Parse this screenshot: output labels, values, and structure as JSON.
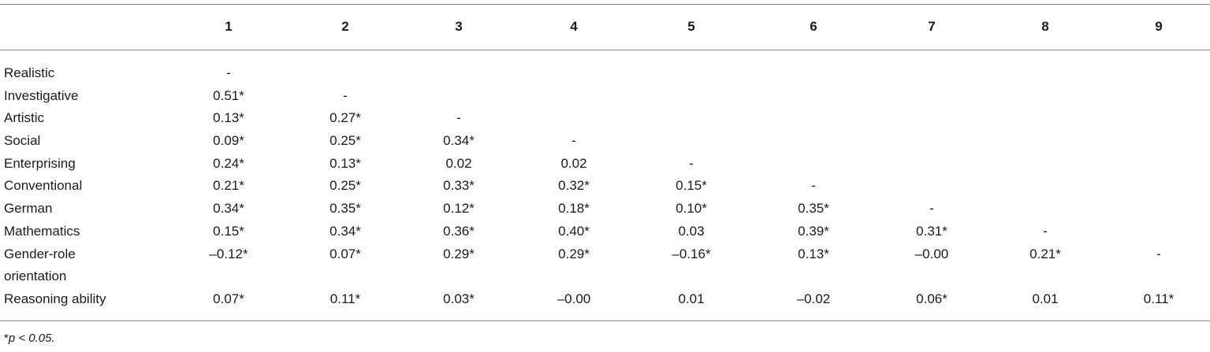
{
  "table": {
    "header": [
      "1",
      "2",
      "3",
      "4",
      "5",
      "6",
      "7",
      "8",
      "9"
    ],
    "rows": [
      {
        "label": "Realistic",
        "cells": [
          "-"
        ]
      },
      {
        "label": "Investigative",
        "cells": [
          "0.51*",
          "-"
        ]
      },
      {
        "label": "Artistic",
        "cells": [
          "0.13*",
          "0.27*",
          "-"
        ]
      },
      {
        "label": "Social",
        "cells": [
          "0.09*",
          "0.25*",
          "0.34*",
          "-"
        ]
      },
      {
        "label": "Enterprising",
        "cells": [
          "0.24*",
          "0.13*",
          "0.02",
          "0.02",
          "-"
        ]
      },
      {
        "label": "Conventional",
        "cells": [
          "0.21*",
          "0.25*",
          "0.33*",
          "0.32*",
          "0.15*",
          "-"
        ]
      },
      {
        "label": "German",
        "cells": [
          "0.34*",
          "0.35*",
          "0.12*",
          "0.18*",
          "0.10*",
          "0.35*",
          "-"
        ]
      },
      {
        "label": "Mathematics",
        "cells": [
          "0.15*",
          "0.34*",
          "0.36*",
          "0.40*",
          "0.03",
          "0.39*",
          "0.31*",
          "-"
        ]
      },
      {
        "label": "Gender-role orientation",
        "cells": [
          "–0.12*",
          "0.07*",
          "0.29*",
          "0.29*",
          "–0.16*",
          "0.13*",
          "–0.00",
          "0.21*",
          "-"
        ]
      },
      {
        "label": "Reasoning ability",
        "cells": [
          "0.07*",
          "0.11*",
          "0.03*",
          "–0.00",
          "0.01",
          "–0.02",
          "0.06*",
          "0.01",
          "0.11*"
        ]
      }
    ]
  },
  "footnote": {
    "marker": "*",
    "text": "p < 0.05."
  }
}
